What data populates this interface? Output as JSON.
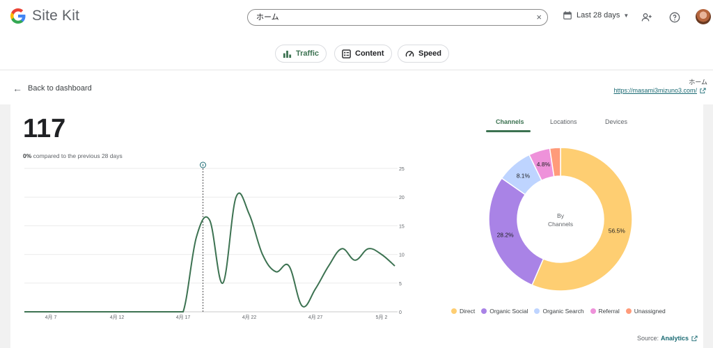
{
  "header": {
    "app_name": "Site Kit",
    "search_value": "ホーム",
    "search_clear": "×",
    "date_range": "Last 28 days",
    "icons": [
      "google-g-logo",
      "search-clear-icon",
      "calendar-icon",
      "chevron-down-icon",
      "add-person-icon",
      "help-icon",
      "avatar"
    ]
  },
  "tabs": [
    {
      "label": "Traffic",
      "icon": "bar-chart-icon",
      "active": true
    },
    {
      "label": "Content",
      "icon": "document-icon",
      "active": false
    },
    {
      "label": "Speed",
      "icon": "speedometer-icon",
      "active": false
    }
  ],
  "subheader": {
    "back_label": "Back to dashboard",
    "page_name": "ホーム",
    "page_url": "https://masami3mizuno3.com/"
  },
  "metric": {
    "value": "117",
    "compare_percent": "0%",
    "compare_text": "compared to the previous 28 days"
  },
  "channel_tabs": [
    {
      "label": "Channels",
      "active": true
    },
    {
      "label": "Locations",
      "active": false
    },
    {
      "label": "Devices",
      "active": false
    }
  ],
  "donut": {
    "center_line1": "By",
    "center_line2": "Channels"
  },
  "source": {
    "prefix": "Source:",
    "link": "Analytics"
  },
  "colors": {
    "accent": "#3c7251",
    "line": "#3c7251",
    "link": "#1a6a73"
  },
  "chart_data": [
    {
      "type": "line",
      "x_tick_labels": [
        "4月 7",
        "4月 12",
        "4月 17",
        "4月 22",
        "4月 27",
        "5月 2"
      ],
      "x_tick_day": [
        7,
        12,
        17,
        22,
        27,
        32
      ],
      "x_range_days": [
        5,
        33
      ],
      "ylim": [
        0,
        25
      ],
      "y_ticks": [
        "0",
        "5",
        "10",
        "15",
        "20",
        "25"
      ],
      "grid": true,
      "annotation_day": 18.5,
      "series": [
        {
          "x": [
            5,
            6,
            7,
            8,
            9,
            10,
            11,
            12,
            13,
            14,
            15,
            16,
            17,
            18,
            19,
            20,
            21,
            22,
            23,
            24,
            25,
            26,
            27,
            28,
            29,
            30,
            31,
            32,
            33
          ],
          "values": [
            0,
            0,
            0,
            0,
            0,
            0,
            0,
            0,
            0,
            0,
            0,
            0,
            0,
            13,
            16,
            5,
            20,
            17,
            10,
            7,
            8,
            1,
            4,
            8,
            11,
            9,
            11,
            10,
            8
          ]
        }
      ]
    },
    {
      "type": "pie",
      "categories": [
        "Direct",
        "Organic Social",
        "Organic Search",
        "Referral",
        "Unassigned"
      ],
      "values": [
        56.5,
        28.2,
        8.1,
        4.8,
        2.4
      ],
      "labels": [
        "56.5%",
        "28.2%",
        "8.1%",
        "4.8%",
        ""
      ],
      "colors": [
        "#fece72",
        "#a983e6",
        "#bed4ff",
        "#ee92da",
        "#ff9b7a"
      ],
      "legend_position": "bottom"
    }
  ]
}
